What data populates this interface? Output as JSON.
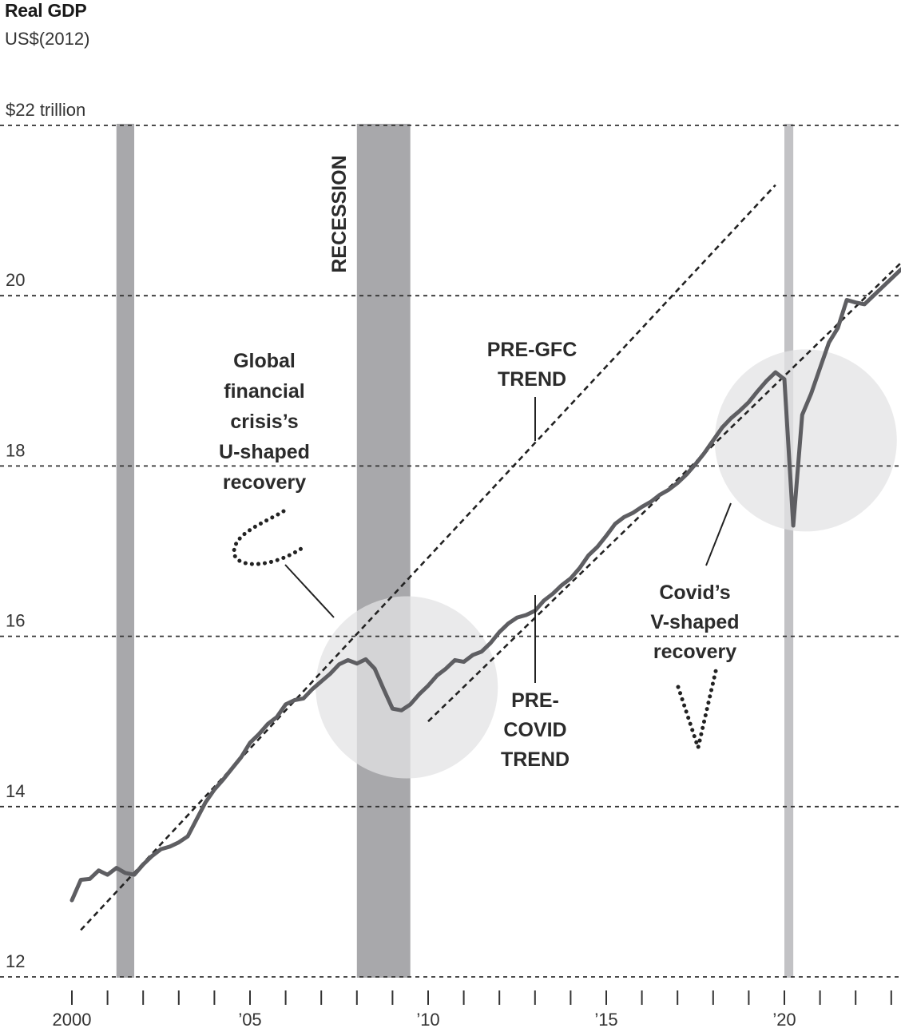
{
  "chart_data": {
    "type": "line",
    "title": "Real GDP",
    "subtitle": "US$(2012)",
    "y_unit_label": "$22 trillion",
    "ylim": [
      12,
      22
    ],
    "xlim": [
      2000,
      2023.9
    ],
    "grid": "horizontal dashed",
    "y_ticks": [
      {
        "value": 22,
        "label": "$22 trillion"
      },
      {
        "value": 20,
        "label": "20"
      },
      {
        "value": 18,
        "label": "18"
      },
      {
        "value": 16,
        "label": "16"
      },
      {
        "value": 14,
        "label": "14"
      },
      {
        "value": 12,
        "label": "12"
      }
    ],
    "x_ticks": [
      {
        "value": 2000,
        "label": "2000"
      },
      {
        "value": 2005,
        "label": "’05"
      },
      {
        "value": 2010,
        "label": "’10"
      },
      {
        "value": 2015,
        "label": "’15"
      },
      {
        "value": 2020,
        "label": "’20"
      }
    ],
    "recessions": [
      {
        "start": 2001.25,
        "end": 2001.75
      },
      {
        "start": 2008.0,
        "end": 2009.5,
        "label": "RECESSION"
      },
      {
        "start": 2020.0,
        "end": 2020.25
      }
    ],
    "series": [
      {
        "values": [
          [
            2000.0,
            12.9
          ],
          [
            2000.25,
            13.14
          ],
          [
            2000.5,
            13.15
          ],
          [
            2000.75,
            13.25
          ],
          [
            2001.0,
            13.2
          ],
          [
            2001.25,
            13.28
          ],
          [
            2001.5,
            13.22
          ],
          [
            2001.75,
            13.2
          ],
          [
            2002.0,
            13.32
          ],
          [
            2002.25,
            13.42
          ],
          [
            2002.5,
            13.5
          ],
          [
            2002.75,
            13.53
          ],
          [
            2003.0,
            13.58
          ],
          [
            2003.25,
            13.65
          ],
          [
            2003.5,
            13.85
          ],
          [
            2003.75,
            14.05
          ],
          [
            2004.0,
            14.2
          ],
          [
            2004.25,
            14.32
          ],
          [
            2004.5,
            14.45
          ],
          [
            2004.75,
            14.58
          ],
          [
            2005.0,
            14.75
          ],
          [
            2005.25,
            14.85
          ],
          [
            2005.5,
            14.97
          ],
          [
            2005.75,
            15.05
          ],
          [
            2006.0,
            15.2
          ],
          [
            2006.25,
            15.25
          ],
          [
            2006.5,
            15.27
          ],
          [
            2006.75,
            15.38
          ],
          [
            2007.0,
            15.47
          ],
          [
            2007.25,
            15.56
          ],
          [
            2007.5,
            15.67
          ],
          [
            2007.75,
            15.72
          ],
          [
            2008.0,
            15.68
          ],
          [
            2008.25,
            15.73
          ],
          [
            2008.5,
            15.62
          ],
          [
            2008.75,
            15.38
          ],
          [
            2009.0,
            15.15
          ],
          [
            2009.25,
            15.13
          ],
          [
            2009.5,
            15.2
          ],
          [
            2009.75,
            15.32
          ],
          [
            2010.0,
            15.42
          ],
          [
            2010.25,
            15.54
          ],
          [
            2010.5,
            15.62
          ],
          [
            2010.75,
            15.72
          ],
          [
            2011.0,
            15.7
          ],
          [
            2011.25,
            15.78
          ],
          [
            2011.5,
            15.82
          ],
          [
            2011.75,
            15.92
          ],
          [
            2012.0,
            16.05
          ],
          [
            2012.25,
            16.15
          ],
          [
            2012.5,
            16.22
          ],
          [
            2012.75,
            16.25
          ],
          [
            2013.0,
            16.3
          ],
          [
            2013.25,
            16.42
          ],
          [
            2013.5,
            16.5
          ],
          [
            2013.75,
            16.6
          ],
          [
            2014.0,
            16.68
          ],
          [
            2014.25,
            16.8
          ],
          [
            2014.5,
            16.95
          ],
          [
            2014.75,
            17.05
          ],
          [
            2015.0,
            17.18
          ],
          [
            2015.25,
            17.32
          ],
          [
            2015.5,
            17.4
          ],
          [
            2015.75,
            17.45
          ],
          [
            2016.0,
            17.52
          ],
          [
            2016.25,
            17.58
          ],
          [
            2016.5,
            17.66
          ],
          [
            2016.75,
            17.72
          ],
          [
            2017.0,
            17.8
          ],
          [
            2017.25,
            17.9
          ],
          [
            2017.5,
            18.02
          ],
          [
            2017.75,
            18.15
          ],
          [
            2018.0,
            18.3
          ],
          [
            2018.25,
            18.45
          ],
          [
            2018.5,
            18.56
          ],
          [
            2018.75,
            18.65
          ],
          [
            2019.0,
            18.75
          ],
          [
            2019.25,
            18.88
          ],
          [
            2019.5,
            19.0
          ],
          [
            2019.75,
            19.1
          ],
          [
            2020.0,
            19.02
          ],
          [
            2020.25,
            17.3
          ],
          [
            2020.5,
            18.6
          ],
          [
            2020.75,
            18.85
          ],
          [
            2021.0,
            19.15
          ],
          [
            2021.25,
            19.45
          ],
          [
            2021.5,
            19.62
          ],
          [
            2021.75,
            19.95
          ],
          [
            2022.0,
            19.92
          ],
          [
            2022.25,
            19.9
          ],
          [
            2022.5,
            20.0
          ],
          [
            2022.75,
            20.1
          ],
          [
            2023.0,
            20.2
          ],
          [
            2023.25,
            20.3
          ],
          [
            2023.5,
            20.38
          ],
          [
            2023.75,
            20.43
          ]
        ]
      }
    ],
    "trends": [
      {
        "label": "PRE-GFC TREND",
        "start": [
          2000.25,
          12.55
        ],
        "end": [
          2019.75,
          21.3
        ]
      },
      {
        "label": "PRE-COVID TREND",
        "start": [
          2010.0,
          15.0
        ],
        "end": [
          2023.8,
          20.6
        ]
      }
    ],
    "annotations": {
      "gfc": [
        "Global",
        "financial",
        "crisis’s",
        "U-shaped",
        "recovery"
      ],
      "pre_gfc": [
        "PRE-GFC",
        "TREND"
      ],
      "pre_covid": [
        "PRE-",
        "COVID",
        "TREND"
      ],
      "covid": [
        "Covid’s",
        "V-shaped",
        "recovery"
      ],
      "recession": "RECESSION"
    },
    "colors": {
      "line": "#5e5e62",
      "recession_dark": "#a8a8ab",
      "recession_light": "#c2c2c5",
      "circle": "#e3e3e4",
      "text": "#2b2b2b"
    }
  }
}
